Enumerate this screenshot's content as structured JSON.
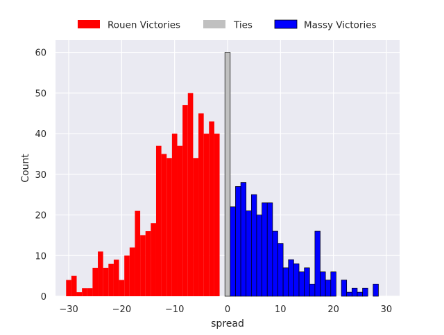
{
  "chart_data": {
    "type": "histogram",
    "xlabel": "spread",
    "ylabel": "Count",
    "xlim": [
      -32.5,
      32.5
    ],
    "ylim": [
      0,
      63
    ],
    "grid": true,
    "background": "#eaeaf2",
    "legend_position": "top-center",
    "xticks": [
      -30,
      -20,
      -10,
      0,
      10,
      20,
      30
    ],
    "xtick_labels": [
      "−30",
      "−20",
      "−10",
      "0",
      "10",
      "20",
      "30"
    ],
    "yticks": [
      0,
      10,
      20,
      30,
      40,
      50,
      60
    ],
    "ytick_labels": [
      "0",
      "10",
      "20",
      "30",
      "40",
      "50",
      "60"
    ],
    "series": [
      {
        "name": "Rouen Victories",
        "color": "#ff0000",
        "edge": "none",
        "x": [
          -30,
          -29,
          -28,
          -27,
          -26,
          -25,
          -24,
          -23,
          -22,
          -21,
          -20,
          -19,
          -18,
          -17,
          -16,
          -15,
          -14,
          -13,
          -12,
          -11,
          -10,
          -9,
          -8,
          -7,
          -6,
          -5,
          -4,
          -3,
          -2,
          -1
        ],
        "values": [
          4,
          5,
          1,
          2,
          2,
          7,
          11,
          7,
          8,
          9,
          4,
          10,
          12,
          21,
          15,
          16,
          18,
          37,
          35,
          34,
          40,
          37,
          47,
          50,
          34,
          45,
          40,
          43,
          40,
          0
        ]
      },
      {
        "name": "Ties",
        "color": "#c0c0c0",
        "edge": "#000000",
        "x": [
          0
        ],
        "values": [
          60
        ]
      },
      {
        "name": "Massy Victories",
        "color": "#0000ff",
        "edge": "#000000",
        "x": [
          1,
          2,
          3,
          4,
          5,
          6,
          7,
          8,
          9,
          10,
          11,
          12,
          13,
          14,
          15,
          16,
          17,
          18,
          19,
          20,
          21,
          22,
          23,
          24,
          25,
          26,
          27,
          28,
          29
        ],
        "values": [
          22,
          27,
          28,
          21,
          25,
          20,
          23,
          23,
          16,
          13,
          7,
          9,
          8,
          6,
          7,
          3,
          16,
          6,
          4,
          6,
          0,
          4,
          1,
          2,
          1,
          2,
          0,
          3,
          0
        ]
      }
    ]
  }
}
